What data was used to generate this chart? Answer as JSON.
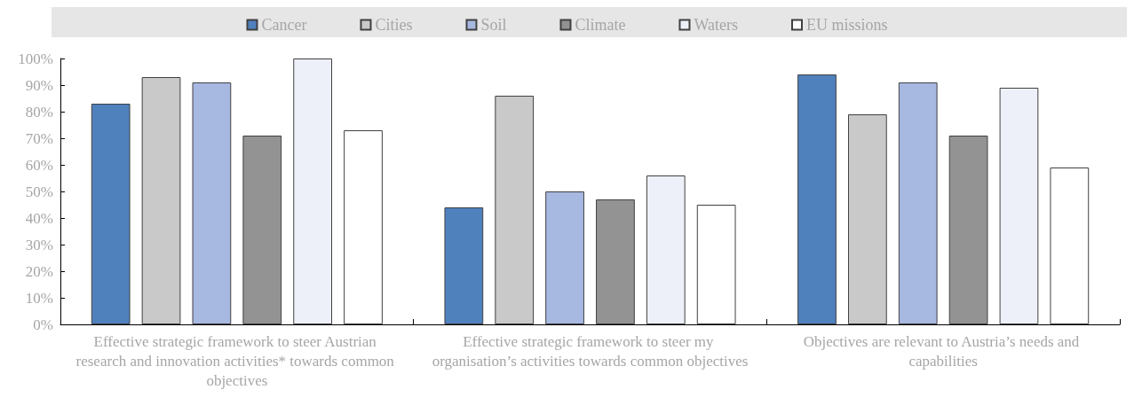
{
  "chart_data": {
    "type": "bar",
    "categories": [
      "Effective strategic framework to steer Austrian research and innovation activities* towards common objectives",
      "Effective strategic framework to steer my organisation’s activities towards common objectives",
      "Objectives are relevant to Austria’s needs and capabilities"
    ],
    "series": [
      {
        "name": "Cancer",
        "color": "#4f81bd",
        "values": [
          83,
          44,
          94
        ]
      },
      {
        "name": "Cities",
        "color": "#c9c9c9",
        "values": [
          93,
          86,
          79
        ]
      },
      {
        "name": "Soil",
        "color": "#a7b8e1",
        "values": [
          91,
          50,
          91
        ]
      },
      {
        "name": "Climate",
        "color": "#939393",
        "values": [
          71,
          47,
          71
        ]
      },
      {
        "name": "Waters",
        "color": "#edf0f8",
        "values": [
          100,
          56,
          89
        ]
      },
      {
        "name": "EU missions",
        "color": "#ffffff",
        "values": [
          73,
          45,
          59
        ]
      }
    ],
    "ylim": [
      0,
      100
    ],
    "yticks": [
      {
        "value": 0,
        "label": "0%"
      },
      {
        "value": 10,
        "label": "10%"
      },
      {
        "value": 20,
        "label": "20%"
      },
      {
        "value": 30,
        "label": "30%"
      },
      {
        "value": 40,
        "label": "40%"
      },
      {
        "value": 50,
        "label": "50%"
      },
      {
        "value": 60,
        "label": "60%"
      },
      {
        "value": 70,
        "label": "70%"
      },
      {
        "value": 80,
        "label": "80%"
      },
      {
        "value": 90,
        "label": "90%"
      },
      {
        "value": 100,
        "label": "100%"
      }
    ],
    "grid": false,
    "legend": "top"
  }
}
